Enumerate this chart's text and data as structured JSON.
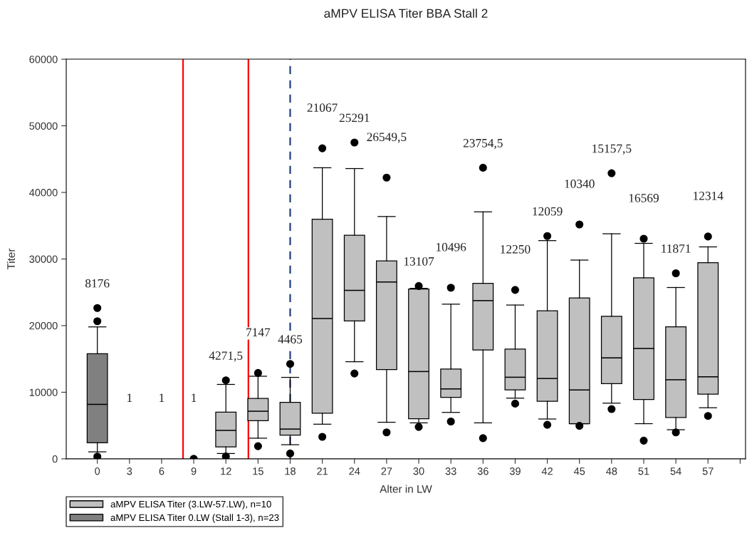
{
  "chart_data": {
    "type": "box",
    "title": "aMPV ELISA Titer BBA Stall 2",
    "xlabel": "Alter in LW",
    "ylabel": "Titer",
    "xlim": [
      -2.9,
      60.5
    ],
    "xticks": [
      0,
      3,
      6,
      9,
      12,
      15,
      18,
      21,
      24,
      27,
      30,
      33,
      36,
      39,
      42,
      45,
      48,
      51,
      54,
      57,
      {
        "value": 60,
        "label": null
      }
    ],
    "ylim": [
      0,
      60000
    ],
    "yticks": [
      0,
      10000,
      20000,
      30000,
      40000,
      50000,
      60000
    ],
    "grid": false,
    "legend": "bottom left",
    "marker": "circle",
    "series": [
      {
        "name": "aMPV ELISA Titer (3.LW-57.LW), n=10",
        "color": "#c0c0c0",
        "x": [
          12,
          15,
          18,
          21,
          24,
          27,
          30,
          33,
          36,
          39,
          42,
          45,
          48,
          51,
          54,
          57
        ],
        "boxes": [
          {
            "low": 800,
            "q1": 1790,
            "median": 4271.5,
            "q3": 7010,
            "high": 11170,
            "outliers": [
              11790,
              370
            ]
          },
          {
            "low": 3100,
            "q1": 5730,
            "median": 7147,
            "q3": 9070,
            "high": 12400,
            "outliers": [
              12890,
              1900
            ]
          },
          {
            "low": 2120,
            "q1": 3550,
            "median": 4465,
            "q3": 8490,
            "high": 12230,
            "outliers": [
              14250,
              800
            ]
          },
          {
            "low": 5200,
            "q1": 6840,
            "median": 21067,
            "q3": 35970,
            "high": 43700,
            "outliers": [
              46620,
              3300
            ]
          },
          {
            "low": 14580,
            "q1": 20710,
            "median": 25291,
            "q3": 33580,
            "high": 43580,
            "outliers": [
              47490,
              12810
            ]
          },
          {
            "low": 5490,
            "q1": 13390,
            "median": 26549.5,
            "q3": 29710,
            "high": 36380,
            "outliers": [
              42220,
              3970
            ]
          },
          {
            "low": 5400,
            "q1": 6020,
            "median": 13107,
            "q3": 25500,
            "high": 25600,
            "outliers": [
              25940,
              4790
            ]
          },
          {
            "low": 6970,
            "q1": 9230,
            "median": 10496,
            "q3": 13470,
            "high": 23220,
            "outliers": [
              25690,
              5610
            ]
          },
          {
            "low": 5400,
            "q1": 16340,
            "median": 23754.5,
            "q3": 26340,
            "high": 37080,
            "outliers": [
              43700,
              3100
            ]
          },
          {
            "low": 9110,
            "q1": 10340,
            "median": 12250,
            "q3": 16470,
            "high": 23090,
            "outliers": [
              25360,
              8290
            ]
          },
          {
            "low": 5980,
            "q1": 8650,
            "median": 12059,
            "q3": 22220,
            "high": 32760,
            "outliers": [
              33450,
              5110
            ]
          },
          {
            "low": 5280,
            "q1": 5280,
            "median": 10340,
            "q3": 24160,
            "high": 29840,
            "outliers": [
              35190,
              4950
            ]
          },
          {
            "low": 8360,
            "q1": 11280,
            "median": 15157.5,
            "q3": 21410,
            "high": 33790,
            "outliers": [
              42880,
              7470
            ]
          },
          {
            "low": 5280,
            "q1": 8900,
            "median": 16569,
            "q3": 27170,
            "high": 32350,
            "outliers": [
              33050,
              2730
            ]
          },
          {
            "low": 4370,
            "q1": 6220,
            "median": 11871,
            "q3": 19810,
            "high": 25720,
            "outliers": [
              27860,
              3970
            ]
          },
          {
            "low": 7670,
            "q1": 9720,
            "median": 12314,
            "q3": 29460,
            "high": 31820,
            "outliers": [
              33380,
              6440
            ]
          }
        ],
        "value_labels": [
          "4271,5",
          "7147",
          "4465",
          "21067",
          "25291",
          "26549,5",
          "13107",
          "10496",
          "23754,5",
          "12250",
          "12059",
          "10340",
          "15157,5",
          "16569",
          "11871",
          "12314"
        ]
      },
      {
        "name": "aMPV ELISA Titer 0.LW (Stall 1-3), n=23",
        "color": "#808080",
        "x": [
          0
        ],
        "boxes": [
          {
            "low": 1050,
            "q1": 2400,
            "median": 8176,
            "q3": 15770,
            "high": 19810,
            "outliers": [
              22640,
              20660,
              340
            ]
          }
        ],
        "value_labels": [
          "8176"
        ]
      },
      {
        "type": "scatter",
        "color": "#000000",
        "x": [
          9
        ],
        "values": [
          0
        ]
      }
    ],
    "ref_lines": [
      {
        "axis": "x",
        "value": 8,
        "color": "#ff0000",
        "line_style": "solid"
      },
      {
        "axis": "x",
        "value": 14.1,
        "color": "#ff0000",
        "line_style": "solid"
      },
      {
        "axis": "x",
        "value": 18,
        "color": "#1f3f7f",
        "line_style": "dashed"
      }
    ],
    "annotations": [
      "1",
      "1",
      "1"
    ]
  }
}
